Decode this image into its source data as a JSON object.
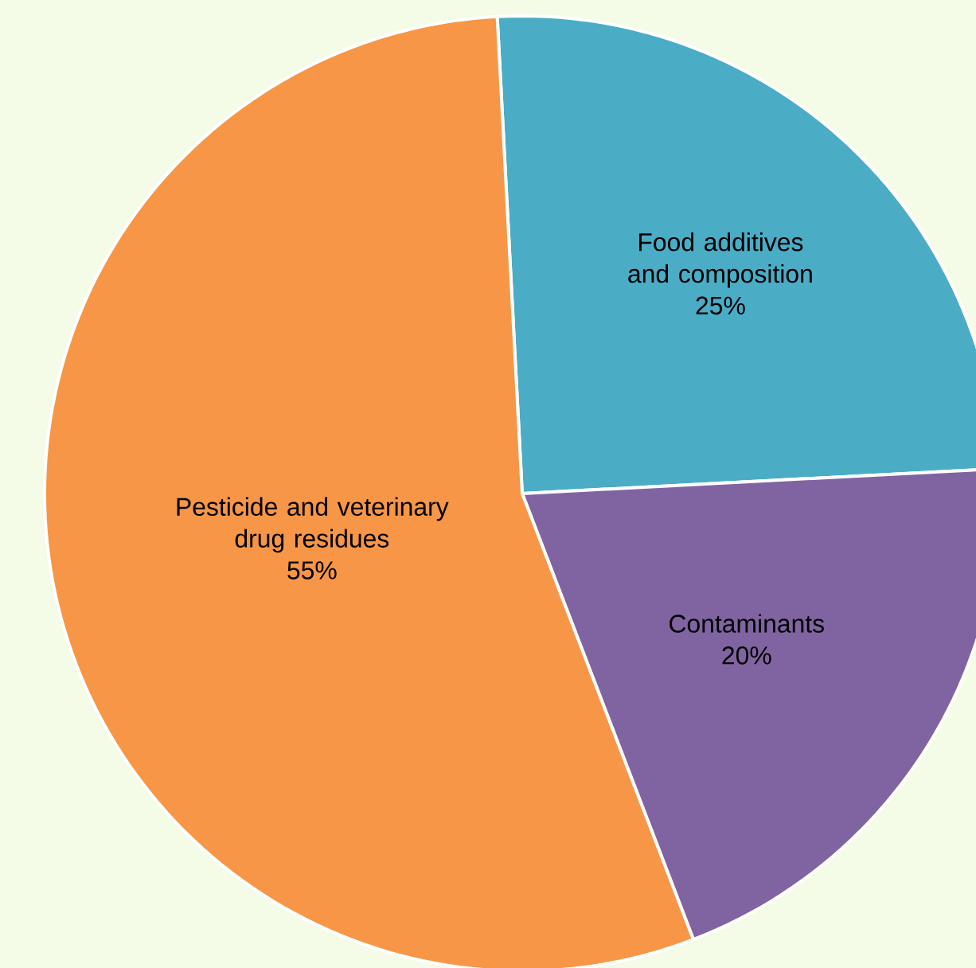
{
  "chart_data": {
    "type": "pie",
    "categories": [
      "Food additives and composition",
      "Contaminants",
      "Pesticide and veterinary drug residues"
    ],
    "values": [
      25,
      20,
      55
    ],
    "value_labels": [
      "25%",
      "20%",
      "55%"
    ],
    "colors": [
      "#4bacc6",
      "#8064a2",
      "#f79646"
    ]
  }
}
